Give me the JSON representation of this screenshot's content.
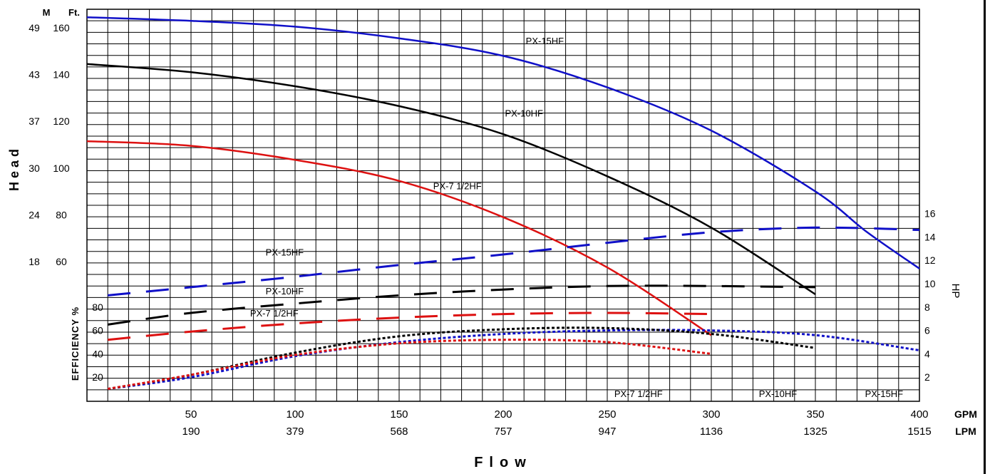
{
  "chart_data": {
    "type": "line",
    "x_label": "Flow",
    "y_label_head": "Head",
    "y_label_eff": "EFFICIENCY %",
    "y_label_hp": "HP",
    "unit_m": "M",
    "unit_ft": "Ft.",
    "unit_gpm": "GPM",
    "unit_lpm": "LPM",
    "gpm_ticks": [
      50,
      100,
      150,
      200,
      250,
      300,
      350,
      400
    ],
    "lpm_ticks": [
      "190",
      "379",
      "568",
      "757",
      "947",
      "1136",
      "1325",
      "1515"
    ],
    "xlim": [
      0,
      400
    ],
    "ft_ticks": [
      {
        "ft": 160,
        "m": "49"
      },
      {
        "ft": 140,
        "m": "43"
      },
      {
        "ft": 120,
        "m": "37"
      },
      {
        "ft": 100,
        "m": "30"
      },
      {
        "ft": 80,
        "m": "24"
      },
      {
        "ft": 60,
        "m": "18"
      }
    ],
    "eff_ticks": [
      80,
      60,
      40,
      20
    ],
    "hp_ticks": [
      16,
      14,
      12,
      10,
      8,
      6,
      4,
      2
    ],
    "colors": {
      "px15": "#1010c8",
      "px10": "#000000",
      "px75": "#dd1111"
    },
    "head_curves": [
      {
        "name": "PX-15HF",
        "color": "#1010c8",
        "label_at": [
          220,
          153
        ],
        "x": [
          0,
          50,
          100,
          150,
          200,
          250,
          300,
          350,
          375,
          400
        ],
        "y": [
          164.5,
          163,
          160.5,
          155.5,
          148,
          134.5,
          116,
          90,
          72.5,
          57
        ]
      },
      {
        "name": "PX-10HF",
        "color": "#000000",
        "label_at": [
          210,
          122
        ],
        "x": [
          0,
          50,
          100,
          150,
          200,
          250,
          300,
          350
        ],
        "y": [
          144.5,
          141,
          135,
          126.5,
          114.5,
          96.5,
          74.5,
          46
        ]
      },
      {
        "name": "PX-7 1/2HF",
        "color": "#dd1111",
        "label_at": [
          178,
          91
        ],
        "x": [
          0,
          50,
          100,
          150,
          200,
          250,
          300
        ],
        "y": [
          111.5,
          109.5,
          103.5,
          94.5,
          79,
          57.5,
          28.5
        ]
      }
    ],
    "hp_curves": [
      {
        "name": "PX-15HF",
        "color": "#1010c8",
        "label_at": [
          95,
          12.4
        ],
        "x": [
          10,
          50,
          100,
          150,
          200,
          250,
          300,
          350,
          400
        ],
        "y": [
          9.0,
          9.7,
          10.6,
          11.6,
          12.5,
          13.5,
          14.4,
          14.8,
          14.6
        ]
      },
      {
        "name": "PX-10HF",
        "color": "#000000",
        "label_at": [
          95,
          9.1
        ],
        "x": [
          10,
          50,
          100,
          150,
          200,
          250,
          300,
          350
        ],
        "y": [
          6.5,
          7.5,
          8.3,
          9.0,
          9.5,
          9.8,
          9.8,
          9.7
        ]
      },
      {
        "name": "PX-7 1/2HF",
        "color": "#dd1111",
        "label_at": [
          90,
          7.2
        ],
        "x": [
          10,
          50,
          100,
          150,
          200,
          250,
          300
        ],
        "y": [
          5.2,
          5.9,
          6.6,
          7.1,
          7.4,
          7.5,
          7.4
        ]
      }
    ],
    "eff_curves": [
      {
        "name": "PX-15HF",
        "color": "#1010c8",
        "label_at": [
          383,
          3
        ],
        "x": [
          10,
          50,
          100,
          150,
          200,
          250,
          300,
          350,
          400
        ],
        "y": [
          10,
          20,
          38,
          50,
          57,
          60,
          60,
          56,
          43
        ]
      },
      {
        "name": "PX-10HF",
        "color": "#000000",
        "label_at": [
          332,
          3
        ],
        "x": [
          10,
          50,
          100,
          150,
          200,
          250,
          300,
          350
        ],
        "y": [
          10,
          22,
          41,
          55,
          61,
          62,
          57,
          45
        ]
      },
      {
        "name": "PX-7 1/2HF",
        "color": "#dd1111",
        "label_at": [
          265,
          3
        ],
        "x": [
          10,
          50,
          100,
          150,
          200,
          250,
          300
        ],
        "y": [
          10,
          22,
          39,
          49,
          52,
          50,
          40
        ]
      }
    ]
  }
}
